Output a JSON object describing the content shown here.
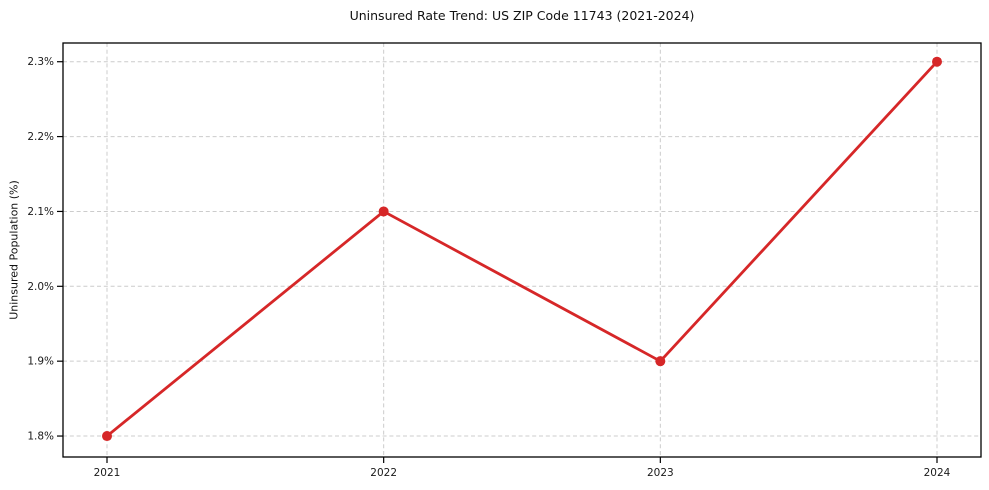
{
  "page": {
    "background": "#ffffff"
  },
  "chart_data": {
    "type": "line",
    "title": "Uninsured Rate Trend: US ZIP Code 11743 (2021-2024)",
    "xlabel": "",
    "ylabel": "Uninsured Population (%)",
    "categories": [
      "2021",
      "2022",
      "2023",
      "2024"
    ],
    "series": [
      {
        "name": "Uninsured Rate",
        "values": [
          1.8,
          2.1,
          1.9,
          2.3
        ],
        "color": "#d62728",
        "marker": "circle"
      }
    ],
    "yticks": {
      "values": [
        1.8,
        1.9,
        2.0,
        2.1,
        2.2,
        2.3
      ],
      "labels": [
        "1.8%",
        "1.9%",
        "2.0%",
        "2.1%",
        "2.2%",
        "2.3%"
      ]
    },
    "ylim": [
      1.772,
      2.325
    ],
    "grid": true,
    "grid_style": "dashed",
    "legend": "none",
    "axis_color": "#000000",
    "grid_color": "#cccccc",
    "text_color": "#1a1a1a"
  }
}
